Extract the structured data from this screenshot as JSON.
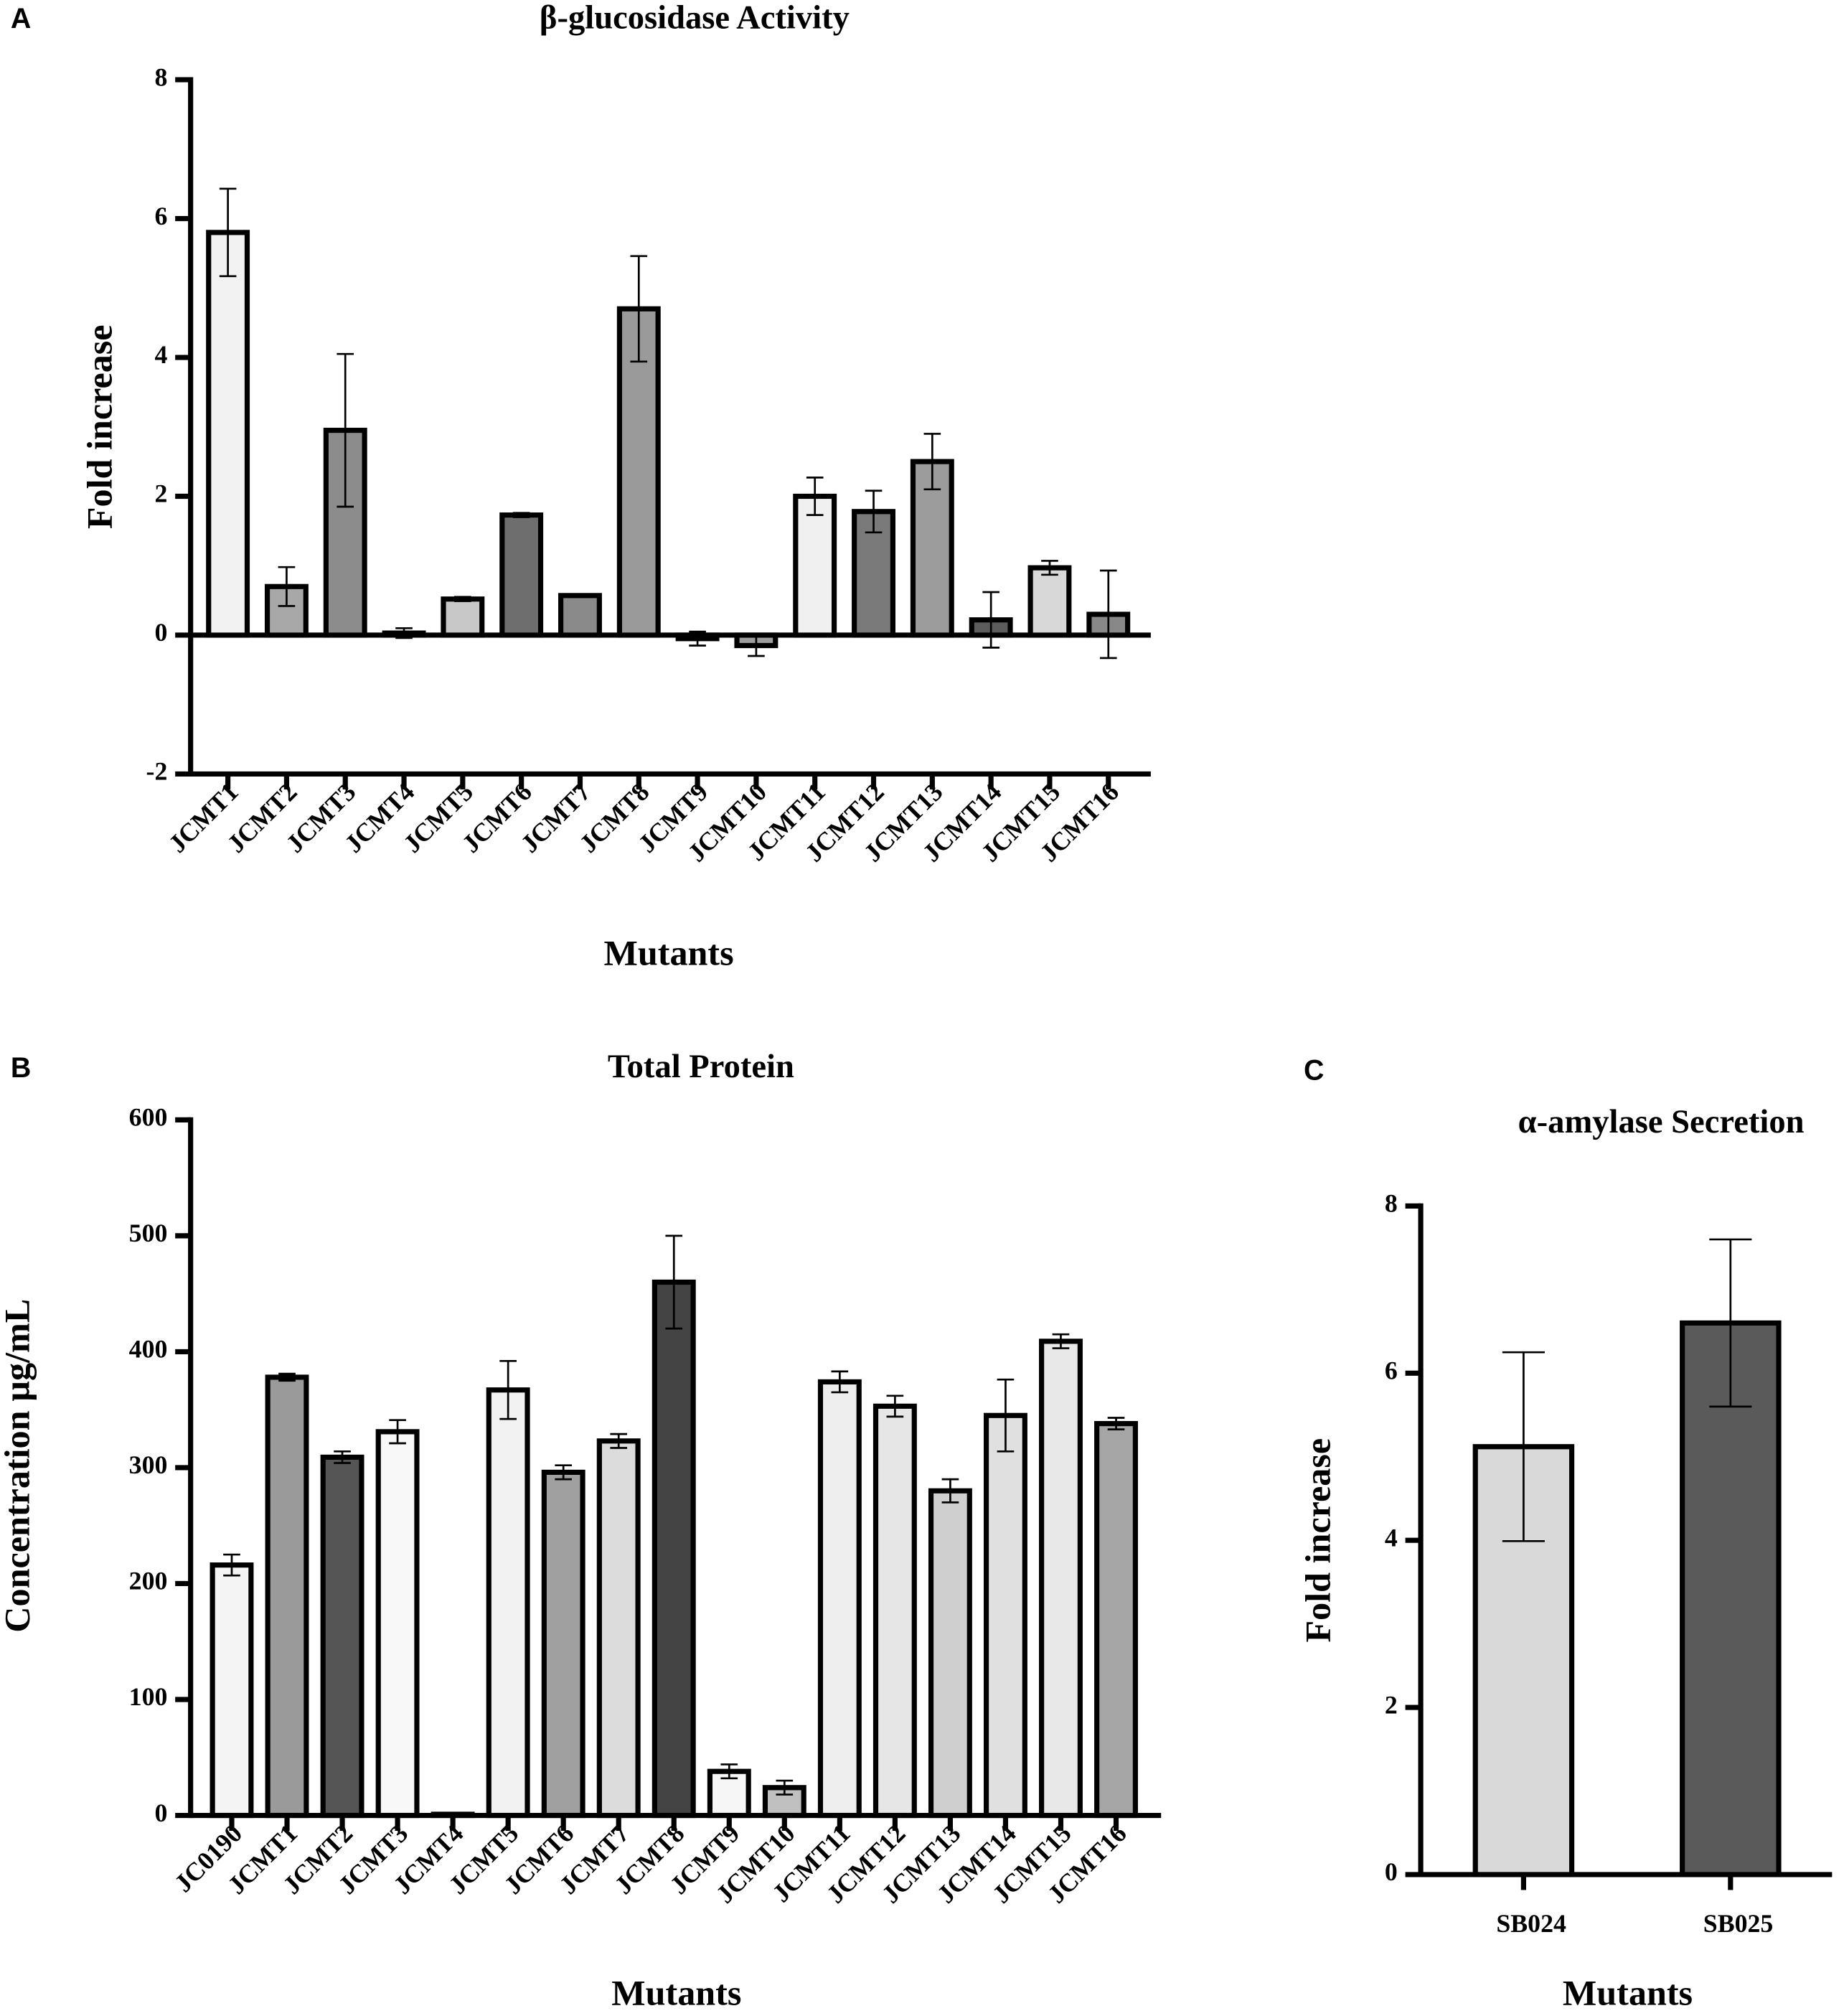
{
  "chart_data": [
    {
      "type": "bar",
      "panel_label": "A",
      "title": "β-glucosidase Activity",
      "x_label": "Mutants",
      "y_label": "Fold increase",
      "categories": [
        "JCMT1",
        "JCMT2",
        "JCMT3",
        "JCMT4",
        "JCMT5",
        "JCMT6",
        "JCMT7",
        "JCMT8",
        "JCMT9",
        "JCMT10",
        "JCMT11",
        "JCMT12",
        "JCMT13",
        "JCMT14",
        "JCMT15",
        "JCMT16"
      ],
      "values": [
        5.8,
        0.7,
        2.95,
        0.03,
        0.52,
        1.73,
        0.57,
        4.7,
        -0.05,
        -0.15,
        2.0,
        1.78,
        2.5,
        0.22,
        0.97,
        0.3
      ],
      "errors": [
        0.63,
        0.28,
        1.1,
        0.07,
        0.03,
        0.03,
        0.02,
        0.76,
        0.1,
        0.15,
        0.27,
        0.3,
        0.4,
        0.4,
        0.1,
        0.63
      ],
      "colors": [
        "#f2f2f2",
        "#a8a8a8",
        "#8c8c8c",
        "#d0d0d0",
        "#c8c8c8",
        "#6e6e6e",
        "#8a8a8a",
        "#9a9a9a",
        "#bbbbbb",
        "#9e9e9e",
        "#f0f0f0",
        "#7a7a7a",
        "#9c9c9c",
        "#5c5c5c",
        "#d8d8d8",
        "#888888"
      ],
      "ylim": [
        -2,
        8
      ],
      "yticks": [
        -2,
        0,
        2,
        4,
        6,
        8
      ]
    },
    {
      "type": "bar",
      "panel_label": "B",
      "title": "Total Protein",
      "x_label": "Mutants",
      "y_label": "Concentration µg/mL",
      "categories": [
        "JC0190",
        "JCMT1",
        "JCMT2",
        "JCMT3",
        "JCMT4",
        "JCMT5",
        "JCMT6",
        "JCMT7",
        "JCMT8",
        "JCMT9",
        "JCMT10",
        "JCMT11",
        "JCMT12",
        "JCMT13",
        "JCMT14",
        "JCMT15",
        "JCMT16"
      ],
      "values": [
        216,
        378,
        309,
        331,
        1,
        367,
        296,
        323,
        460,
        38,
        24,
        374,
        353,
        280,
        345,
        409,
        338
      ],
      "errors": [
        9,
        3,
        5,
        10,
        0,
        25,
        6,
        6,
        40,
        6,
        6,
        9,
        9,
        10,
        31,
        6,
        5
      ],
      "colors": [
        "#f4f4f4",
        "#9a9a9a",
        "#555555",
        "#f8f8f8",
        "#ffffff",
        "#f2f2f2",
        "#a0a0a0",
        "#dcdcdc",
        "#444444",
        "#f6f6f6",
        "#c0c0c0",
        "#eeeeee",
        "#e6e6e6",
        "#cfcfcf",
        "#e0e0e0",
        "#e8e8e8",
        "#a6a6a6"
      ],
      "ylim": [
        0,
        600
      ],
      "yticks": [
        0,
        100,
        200,
        300,
        400,
        500,
        600
      ]
    },
    {
      "type": "bar",
      "panel_label": "C",
      "title": "α-amylase Secretion",
      "x_label": "Mutants",
      "y_label": "Fold increase",
      "categories": [
        "SB024",
        "SB025"
      ],
      "values": [
        5.12,
        6.6
      ],
      "errors": [
        1.13,
        1.0
      ],
      "colors": [
        "#d9d9d9",
        "#5a5a5a"
      ],
      "ylim": [
        0,
        8
      ],
      "yticks": [
        0,
        2,
        4,
        6,
        8
      ]
    }
  ]
}
